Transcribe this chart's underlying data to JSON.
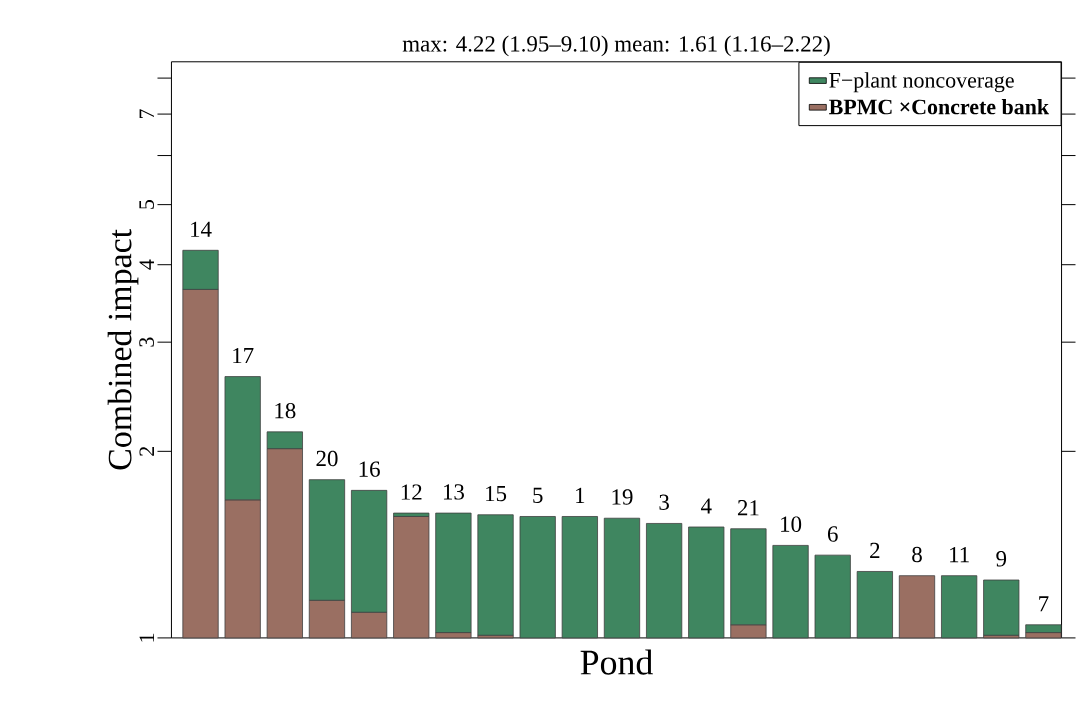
{
  "chart_data": {
    "type": "bar",
    "title": "max: 4.22 (1.95–9.10)  mean: 1.61 (1.16–2.22)",
    "xlabel": "Pond",
    "ylabel": "Combined impact",
    "categories": [
      "14",
      "17",
      "18",
      "20",
      "16",
      "12",
      "13",
      "15",
      "5",
      "1",
      "19",
      "3",
      "4",
      "21",
      "10",
      "6",
      "2",
      "8",
      "11",
      "9",
      "7"
    ],
    "series": [
      {
        "name": "F−plant noncoverage",
        "color": "#3f8660",
        "base": [
          3.65,
          1.67,
          2.02,
          1.15,
          1.1,
          1.57,
          1.02,
          1.01,
          1,
          1,
          1,
          1,
          1,
          1.05,
          1,
          1,
          1,
          null,
          1,
          1.01,
          1.02
        ],
        "values": [
          0.57,
          0.97,
          0.13,
          0.65,
          0.63,
          0.02,
          0.57,
          0.57,
          0.57,
          0.57,
          0.56,
          0.53,
          0.51,
          0.45,
          0.41,
          0.36,
          0.28,
          null,
          0.26,
          0.23,
          0.03
        ]
      },
      {
        "name": "**BPMC ×Concrete bank**",
        "color": "#9a6f62",
        "base": [
          1,
          1,
          1,
          1,
          1,
          1,
          1,
          1,
          null,
          null,
          null,
          null,
          null,
          1,
          null,
          null,
          null,
          1,
          null,
          1,
          1
        ],
        "values": [
          2.65,
          0.67,
          1.02,
          0.15,
          0.1,
          0.57,
          0.02,
          0.01,
          null,
          null,
          null,
          null,
          null,
          0.05,
          null,
          null,
          null,
          0.26,
          null,
          0.01,
          0.02
        ]
      }
    ],
    "log": "y",
    "ylim": [
      1,
      8.5
    ],
    "yticks": [
      1,
      2,
      3,
      4,
      5,
      {
        "value": 6,
        "label": null
      },
      7,
      {
        "value": 8,
        "label": null
      }
    ],
    "legend": "top right",
    "grid": false
  }
}
